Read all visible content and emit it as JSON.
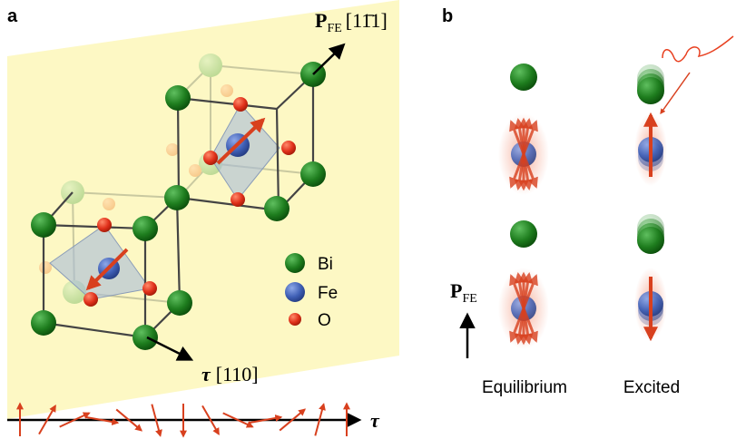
{
  "panel_a": {
    "label": "a",
    "polarization_axis": {
      "symbol": "P",
      "subscript": "FE",
      "direction": "[11̄1]"
    },
    "propagation_axis": {
      "symbol": "τ",
      "direction": "[110]"
    },
    "legend": [
      "Bi",
      "Fe",
      "O"
    ],
    "spin_axis_label": "τ"
  },
  "panel_b": {
    "label": "b",
    "polarization": {
      "symbol": "P",
      "subscript": "FE"
    },
    "columns": [
      "Equilibrium",
      "Excited"
    ]
  }
}
